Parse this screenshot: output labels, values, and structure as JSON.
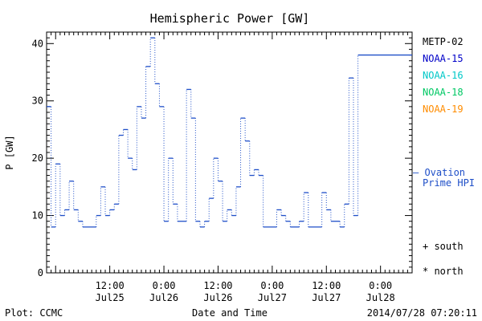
{
  "chart_data": {
    "type": "line",
    "title": "Hemispheric Power [GW]",
    "xlabel": "Date and Time",
    "ylabel": "P [GW]",
    "ylim": [
      0,
      42
    ],
    "yticks": [
      0,
      10,
      20,
      30,
      40
    ],
    "xlim": [
      "2014-07-24T22:00",
      "2014-07-28T07:00"
    ],
    "xticks": [
      {
        "t": "2014-07-25T12:00",
        "top": "12:00",
        "bottom": "Jul25"
      },
      {
        "t": "2014-07-26T00:00",
        "top": "0:00",
        "bottom": "Jul26"
      },
      {
        "t": "2014-07-26T12:00",
        "top": "12:00",
        "bottom": "Jul26"
      },
      {
        "t": "2014-07-27T00:00",
        "top": "0:00",
        "bottom": "Jul27"
      },
      {
        "t": "2014-07-27T12:00",
        "top": "12:00",
        "bottom": "Jul27"
      },
      {
        "t": "2014-07-28T00:00",
        "top": "0:00",
        "bottom": "Jul28"
      }
    ],
    "legend": [
      {
        "name": "METP-02",
        "color": "#000000"
      },
      {
        "name": "NOAA-15",
        "color": "#0000c8"
      },
      {
        "name": "NOAA-16",
        "color": "#00c8c8"
      },
      {
        "name": "NOAA-18",
        "color": "#00c864"
      },
      {
        "name": "NOAA-19",
        "color": "#ff8c00"
      }
    ],
    "ovation_legend": [
      "— Ovation",
      "Prime HPI"
    ],
    "ovation_color": "#1f4fc8",
    "symbol_legend": [
      "+ south",
      "* north"
    ],
    "series": [
      {
        "name": "Ovation Prime HPI",
        "color": "#1f4fc8",
        "points": [
          [
            "2014-07-24T22:00",
            29
          ],
          [
            "2014-07-24T23:00",
            8
          ],
          [
            "2014-07-25T00:00",
            19
          ],
          [
            "2014-07-25T01:00",
            10
          ],
          [
            "2014-07-25T02:00",
            11
          ],
          [
            "2014-07-25T03:00",
            16
          ],
          [
            "2014-07-25T04:00",
            11
          ],
          [
            "2014-07-25T05:00",
            9
          ],
          [
            "2014-07-25T06:00",
            8
          ],
          [
            "2014-07-25T09:00",
            10
          ],
          [
            "2014-07-25T10:00",
            15
          ],
          [
            "2014-07-25T11:00",
            10
          ],
          [
            "2014-07-25T12:00",
            11
          ],
          [
            "2014-07-25T13:00",
            12
          ],
          [
            "2014-07-25T14:00",
            24
          ],
          [
            "2014-07-25T15:00",
            25
          ],
          [
            "2014-07-25T16:00",
            20
          ],
          [
            "2014-07-25T17:00",
            18
          ],
          [
            "2014-07-25T18:00",
            29
          ],
          [
            "2014-07-25T19:00",
            27
          ],
          [
            "2014-07-25T20:00",
            36
          ],
          [
            "2014-07-25T21:00",
            41
          ],
          [
            "2014-07-25T22:00",
            33
          ],
          [
            "2014-07-25T23:00",
            29
          ],
          [
            "2014-07-26T00:00",
            9
          ],
          [
            "2014-07-26T01:00",
            20
          ],
          [
            "2014-07-26T02:00",
            12
          ],
          [
            "2014-07-26T03:00",
            9
          ],
          [
            "2014-07-26T04:00",
            9
          ],
          [
            "2014-07-26T05:00",
            32
          ],
          [
            "2014-07-26T06:00",
            27
          ],
          [
            "2014-07-26T07:00",
            9
          ],
          [
            "2014-07-26T08:00",
            8
          ],
          [
            "2014-07-26T09:00",
            9
          ],
          [
            "2014-07-26T10:00",
            13
          ],
          [
            "2014-07-26T11:00",
            20
          ],
          [
            "2014-07-26T12:00",
            16
          ],
          [
            "2014-07-26T13:00",
            9
          ],
          [
            "2014-07-26T14:00",
            11
          ],
          [
            "2014-07-26T15:00",
            10
          ],
          [
            "2014-07-26T16:00",
            15
          ],
          [
            "2014-07-26T17:00",
            27
          ],
          [
            "2014-07-26T18:00",
            23
          ],
          [
            "2014-07-26T19:00",
            17
          ],
          [
            "2014-07-26T20:00",
            18
          ],
          [
            "2014-07-26T21:00",
            17
          ],
          [
            "2014-07-26T22:00",
            8
          ],
          [
            "2014-07-27T01:00",
            11
          ],
          [
            "2014-07-27T02:00",
            10
          ],
          [
            "2014-07-27T03:00",
            9
          ],
          [
            "2014-07-27T04:00",
            8
          ],
          [
            "2014-07-27T06:00",
            9
          ],
          [
            "2014-07-27T07:00",
            14
          ],
          [
            "2014-07-27T08:00",
            8
          ],
          [
            "2014-07-27T11:00",
            14
          ],
          [
            "2014-07-27T12:00",
            11
          ],
          [
            "2014-07-27T13:00",
            9
          ],
          [
            "2014-07-27T14:00",
            9
          ],
          [
            "2014-07-27T15:00",
            8
          ],
          [
            "2014-07-27T16:00",
            12
          ],
          [
            "2014-07-27T17:00",
            34
          ],
          [
            "2014-07-27T18:00",
            10
          ],
          [
            "2014-07-27T19:00",
            38
          ]
        ]
      }
    ]
  },
  "footer": {
    "left": "Plot: CCMC",
    "right": "2014/07/28 07:20:11"
  }
}
